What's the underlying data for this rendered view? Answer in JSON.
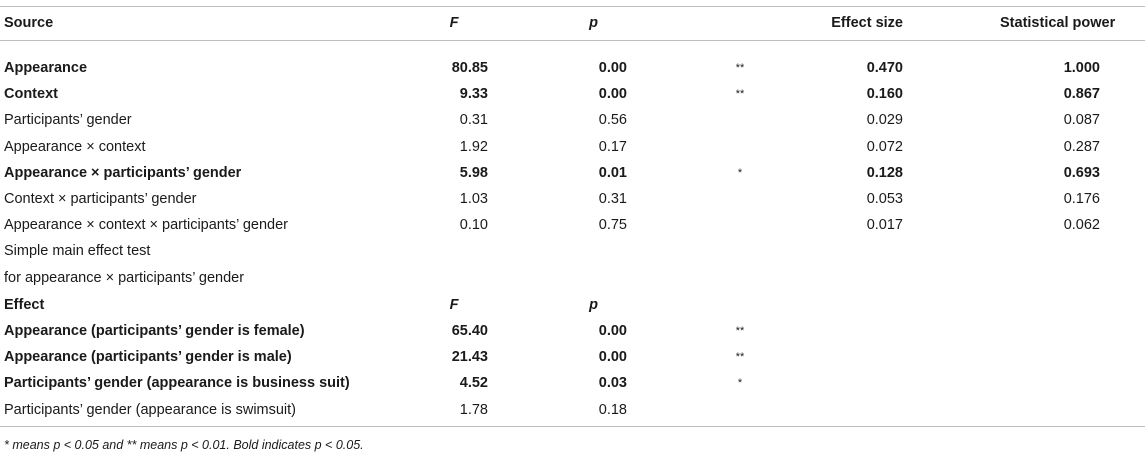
{
  "headers": {
    "source": "Source",
    "f": "F",
    "p": "p",
    "effect_size": "Effect size",
    "statistical_power": "Statistical power"
  },
  "rows": [
    {
      "source": "Appearance",
      "f": "80.85",
      "p": "0.00",
      "sig": "**",
      "es": "0.470",
      "sp": "1.000",
      "bold": true
    },
    {
      "source": "Context",
      "f": "9.33",
      "p": "0.00",
      "sig": "**",
      "es": "0.160",
      "sp": "0.867",
      "bold": true
    },
    {
      "source": "Participants’ gender",
      "f": "0.31",
      "p": "0.56",
      "sig": "",
      "es": "0.029",
      "sp": "0.087",
      "bold": false
    },
    {
      "source": "Appearance × context",
      "f": "1.92",
      "p": "0.17",
      "sig": "",
      "es": "0.072",
      "sp": "0.287",
      "bold": false
    },
    {
      "source": "Appearance × participants’ gender",
      "f": "5.98",
      "p": "0.01",
      "sig": "*",
      "es": "0.128",
      "sp": "0.693",
      "bold": true
    },
    {
      "source": "Context × participants’ gender",
      "f": "1.03",
      "p": "0.31",
      "sig": "",
      "es": "0.053",
      "sp": "0.176",
      "bold": false
    },
    {
      "source": "Appearance × context × participants’ gender",
      "f": "0.10",
      "p": "0.75",
      "sig": "",
      "es": "0.017",
      "sp": "0.062",
      "bold": false
    }
  ],
  "simple_effect_title": [
    "Simple main effect test",
    "for appearance × participants’ gender"
  ],
  "effect_headers": {
    "effect": "Effect",
    "f": "F",
    "p": "p"
  },
  "effect_rows": [
    {
      "effect": "Appearance (participants’ gender is female)",
      "f": "65.40",
      "p": "0.00",
      "sig": "**",
      "bold": true
    },
    {
      "effect": "Appearance (participants’ gender is male)",
      "f": "21.43",
      "p": "0.00",
      "sig": "**",
      "bold": true
    },
    {
      "effect": "Participants’ gender (appearance is business suit)",
      "f": "4.52",
      "p": "0.03",
      "sig": "*",
      "bold": true
    },
    {
      "effect": "Participants’ gender (appearance is swimsuit)",
      "f": "1.78",
      "p": "0.18",
      "sig": "",
      "bold": false
    }
  ],
  "footnote": "* means p < 0.05 and ** means p < 0.01. Bold indicates p < 0.05."
}
